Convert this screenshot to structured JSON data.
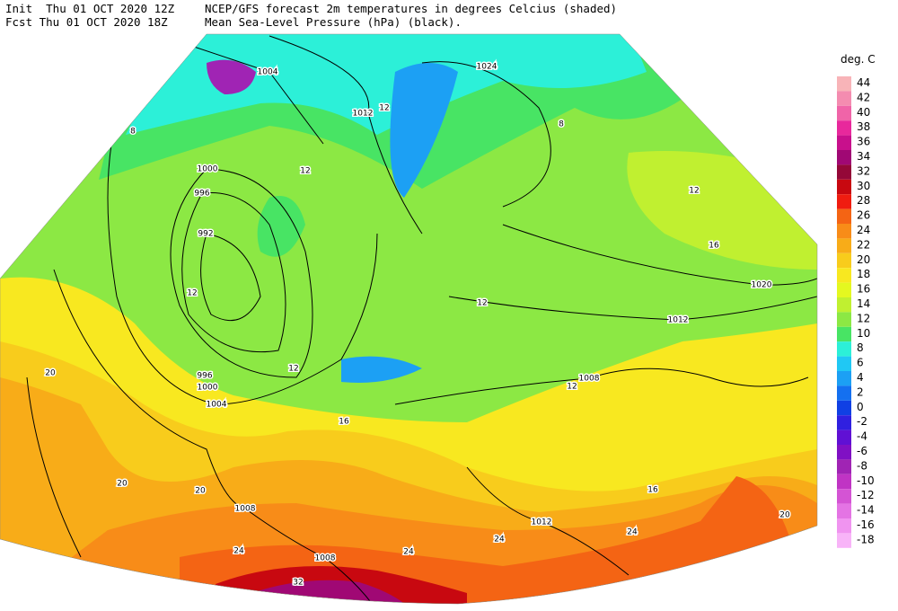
{
  "header": {
    "init": "Init  Thu 01 OCT 2020 12Z",
    "fcst": "Fcst Thu 01 OCT 2020 18Z",
    "line1": "NCEP/GFS forecast 2m temperatures in degrees Celcius (shaded)",
    "line2": "Mean Sea-Level Pressure (hPa) (black)."
  },
  "legend": {
    "title": "deg. C",
    "items": [
      {
        "label": "44",
        "color": "#f8b4b8"
      },
      {
        "label": "42",
        "color": "#f48cb0"
      },
      {
        "label": "40",
        "color": "#f064a8"
      },
      {
        "label": "38",
        "color": "#e8289c"
      },
      {
        "label": "36",
        "color": "#c8108c"
      },
      {
        "label": "34",
        "color": "#a00874"
      },
      {
        "label": "32",
        "color": "#940838"
      },
      {
        "label": "30",
        "color": "#c80810"
      },
      {
        "label": "28",
        "color": "#f01c10"
      },
      {
        "label": "26",
        "color": "#f46414"
      },
      {
        "label": "24",
        "color": "#f88c18"
      },
      {
        "label": "22",
        "color": "#f8ac18"
      },
      {
        "label": "20",
        "color": "#f8cc1c"
      },
      {
        "label": "18",
        "color": "#f8e820"
      },
      {
        "label": "16",
        "color": "#e4f820"
      },
      {
        "label": "14",
        "color": "#c0f030"
      },
      {
        "label": "12",
        "color": "#8ce844"
      },
      {
        "label": "10",
        "color": "#48e464"
      },
      {
        "label": "8",
        "color": "#2cf0d8"
      },
      {
        "label": "6",
        "color": "#20c8f4"
      },
      {
        "label": "4",
        "color": "#1ca0f4"
      },
      {
        "label": "2",
        "color": "#1470f0"
      },
      {
        "label": "0",
        "color": "#1040e4"
      },
      {
        "label": "-2",
        "color": "#3020e0"
      },
      {
        "label": "-4",
        "color": "#6010d4"
      },
      {
        "label": "-6",
        "color": "#8010c4"
      },
      {
        "label": "-8",
        "color": "#a024b4"
      },
      {
        "label": "-10",
        "color": "#c034c4"
      },
      {
        "label": "-12",
        "color": "#d454d4"
      },
      {
        "label": "-14",
        "color": "#e474e4"
      },
      {
        "label": "-16",
        "color": "#f094f0"
      },
      {
        "label": "-18",
        "color": "#f8b4f8"
      }
    ]
  },
  "map": {
    "isobar_labels": [
      "1004",
      "1024",
      "1012",
      "1000",
      "996",
      "992",
      "996",
      "1000",
      "1004",
      "1008",
      "1008",
      "1012",
      "1008",
      "1012",
      "1020"
    ],
    "temp_labels": [
      "12",
      "12",
      "8",
      "8",
      "12",
      "12",
      "12",
      "12",
      "16",
      "16",
      "12",
      "20",
      "20",
      "20",
      "24",
      "24",
      "24",
      "32",
      "24",
      "16",
      "20"
    ]
  }
}
